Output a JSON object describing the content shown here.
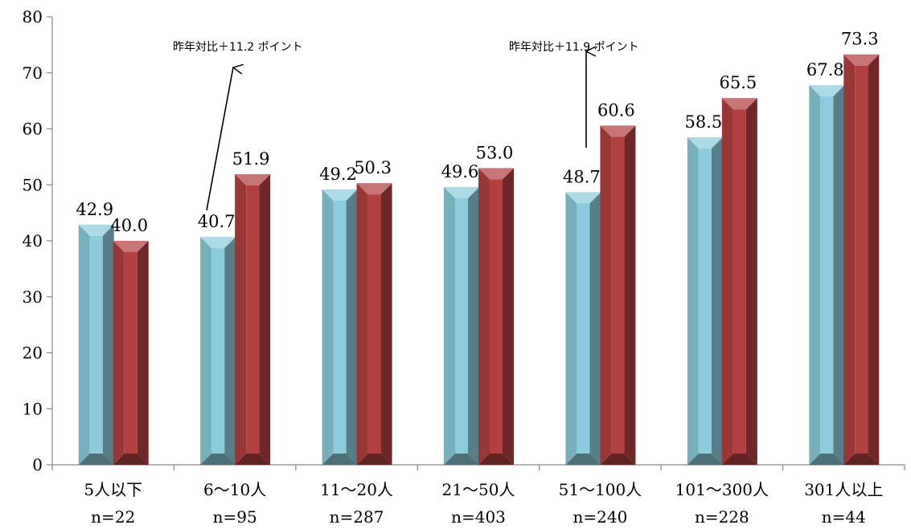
{
  "chart_data": {
    "type": "bar",
    "categories": [
      {
        "line1": "5人以下",
        "line2": "n=22"
      },
      {
        "line1": "6～10人",
        "line2": "n=95"
      },
      {
        "line1": "11～20人",
        "line2": "n=287"
      },
      {
        "line1": "21～50人",
        "line2": "n=403"
      },
      {
        "line1": "51～100人",
        "line2": "n=240"
      },
      {
        "line1": "101～300人",
        "line2": "n=228"
      },
      {
        "line1": "301人以上",
        "line2": "n=44"
      }
    ],
    "series": [
      {
        "color": "#8ccbdc",
        "values": [
          42.9,
          40.7,
          49.2,
          49.6,
          48.7,
          58.5,
          67.8
        ]
      },
      {
        "color": "#b2403f",
        "values": [
          40.0,
          51.9,
          50.3,
          53.0,
          60.6,
          65.5,
          73.3
        ]
      }
    ],
    "ylim": [
      0,
      80
    ],
    "yticks": [
      0,
      10,
      20,
      30,
      40,
      50,
      60,
      70,
      80
    ],
    "title": "",
    "xlabel": "",
    "ylabel": "",
    "grid": false,
    "legend": "none",
    "annotations": [
      {
        "text": "昨年対比＋11.2 ポイント",
        "category_index": 1
      },
      {
        "text": "昨年対比＋11.9 ポイント",
        "category_index": 4
      }
    ]
  }
}
